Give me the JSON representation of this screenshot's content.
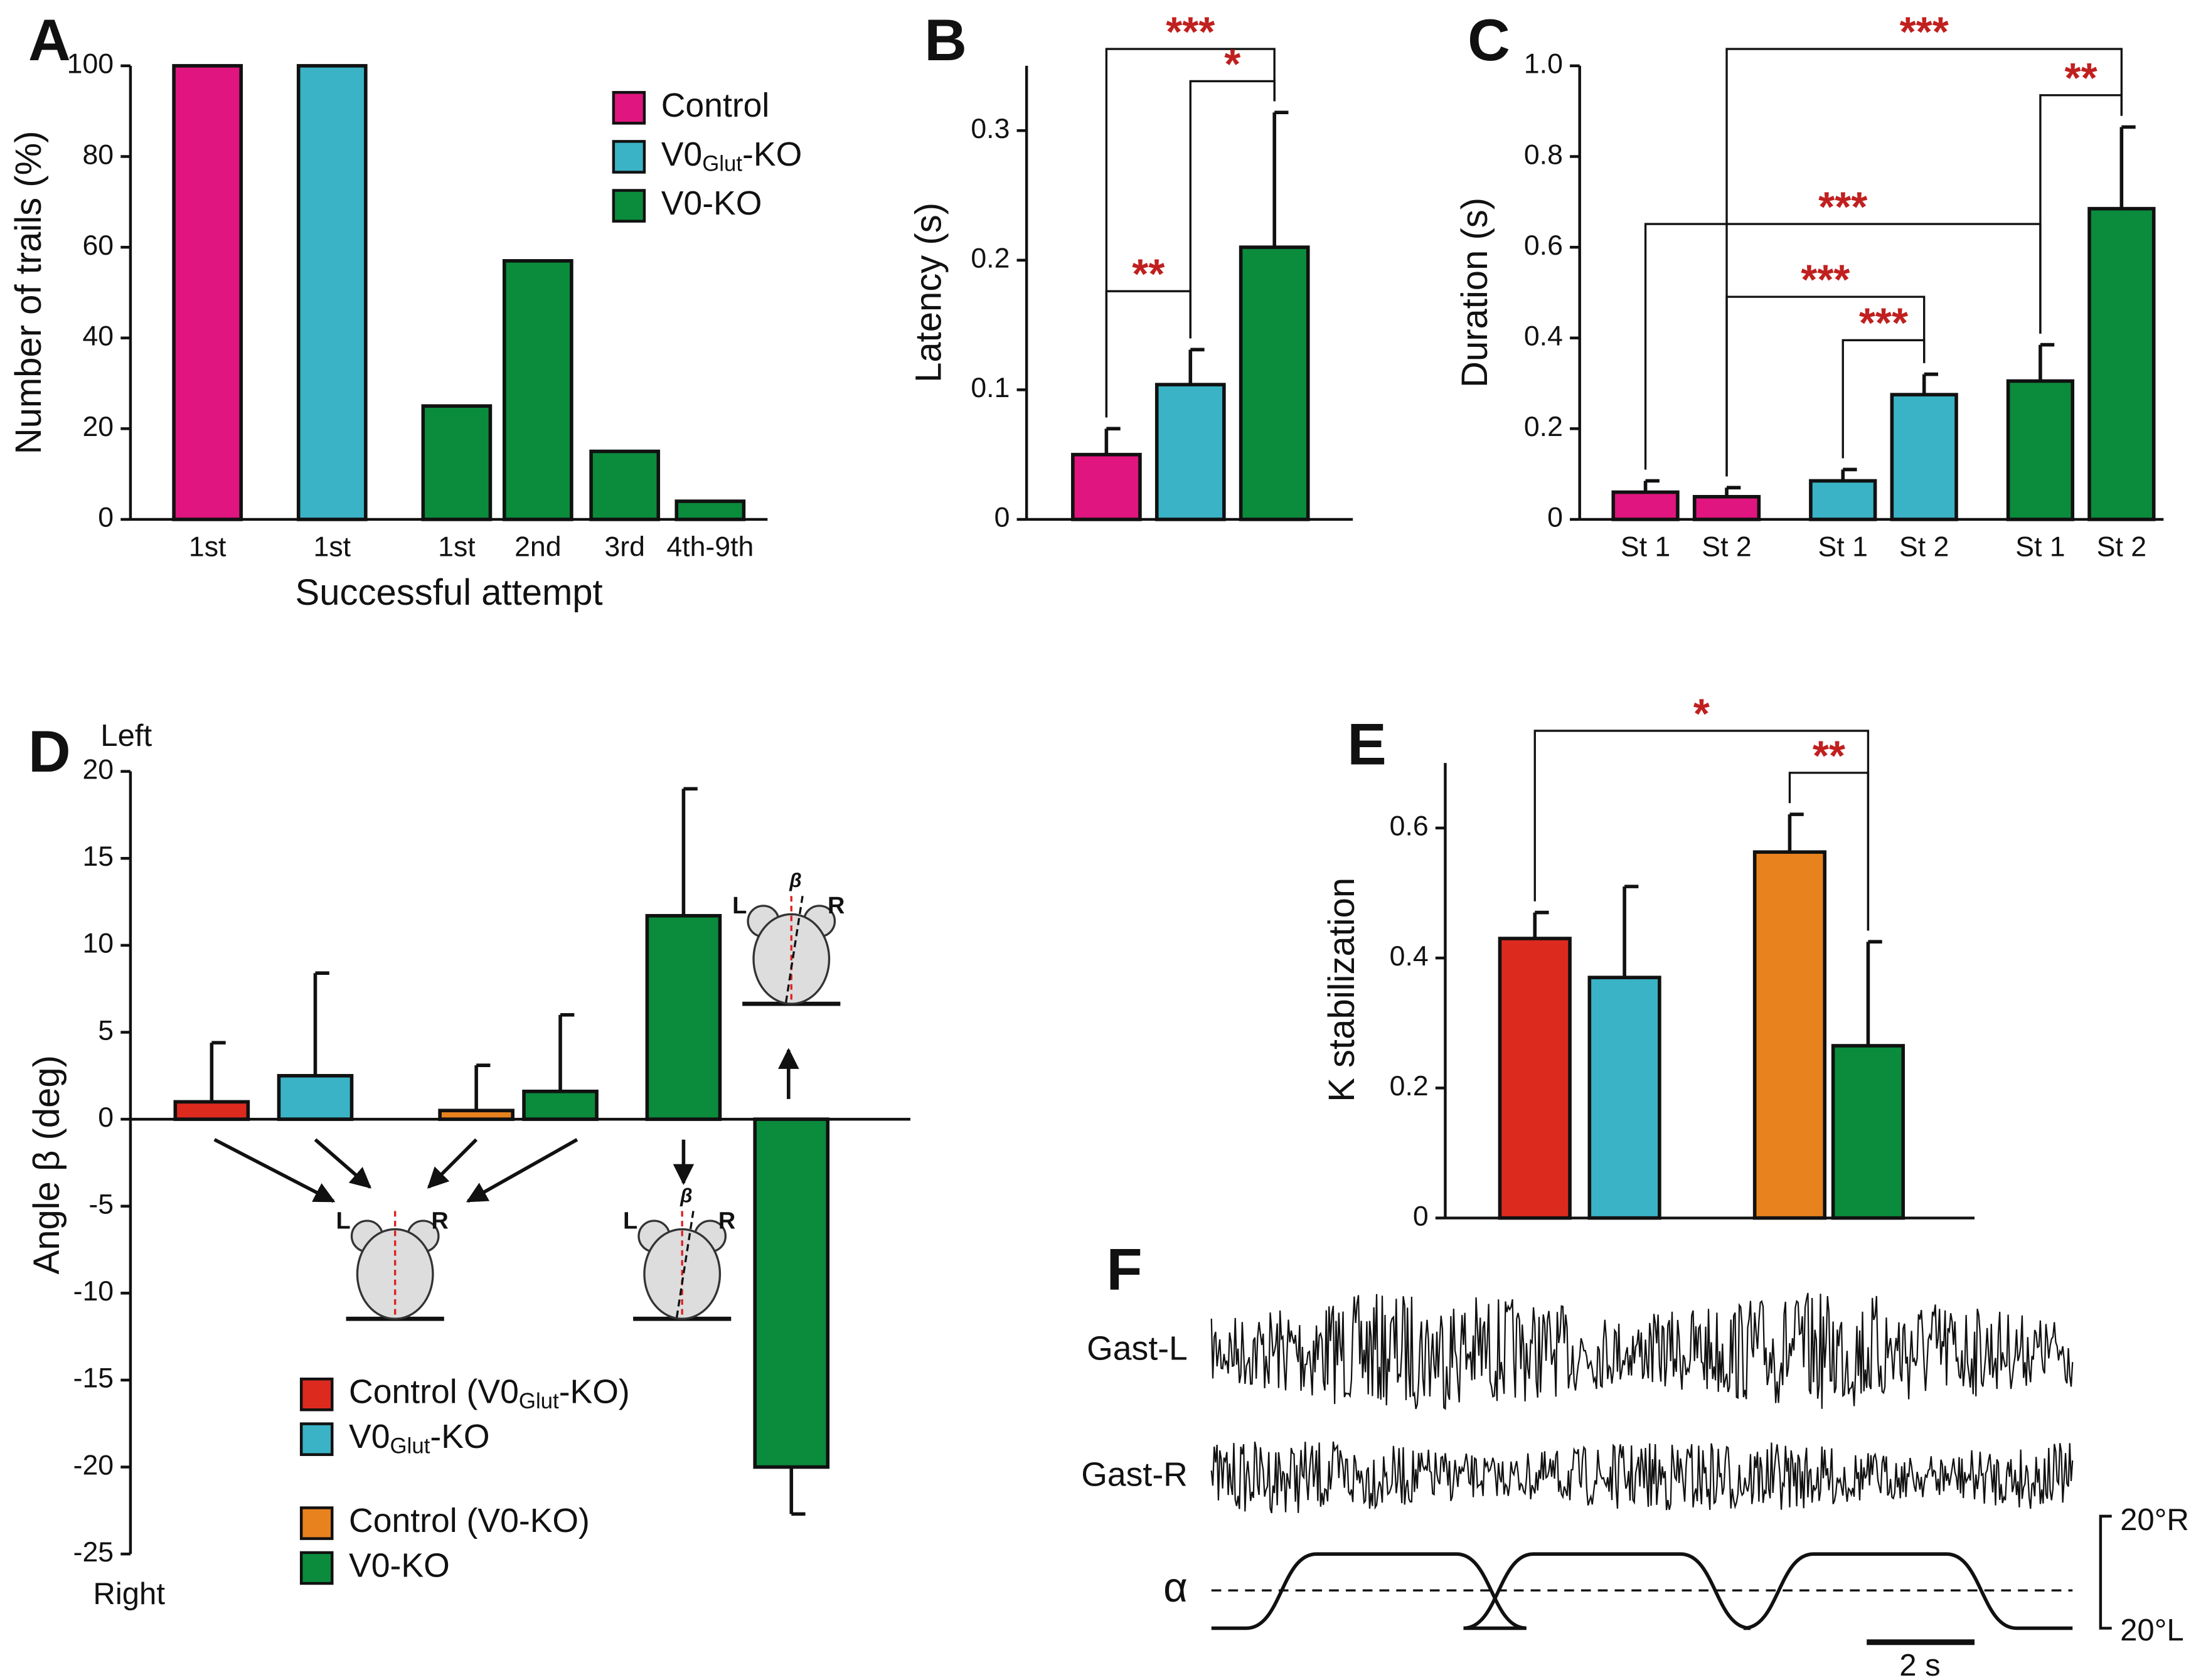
{
  "chart_data": [
    {
      "type": "bar",
      "panel": "A",
      "ylabel": "Number of trails (%)",
      "xlabel": "Successful attempt",
      "categories": [
        "1st",
        "1st",
        "1st",
        "2nd",
        "3rd",
        "4th-9th"
      ],
      "values": [
        100,
        100,
        25,
        57,
        15,
        4
      ],
      "colors": [
        "#e0157f",
        "#3ab3c6",
        "#0a8c3c",
        "#0a8c3c",
        "#0a8c3c",
        "#0a8c3c"
      ],
      "legend": [
        {
          "name": "Control",
          "color": "#e0157f"
        },
        {
          "name": [
            "V0",
            "Glut",
            "-KO"
          ],
          "color": "#3ab3c6"
        },
        {
          "name": "V0-KO",
          "color": "#0a8c3c"
        }
      ],
      "ylim": [
        0,
        100
      ],
      "yticks": [
        0,
        20,
        40,
        60,
        80,
        100
      ]
    },
    {
      "type": "bar",
      "panel": "B",
      "ylabel": "Latency (s)",
      "values": [
        0.05,
        0.104,
        0.21
      ],
      "errors": [
        0.02,
        0.027,
        0.104
      ],
      "colors": [
        "#e0157f",
        "#3ab3c6",
        "#0a8c3c"
      ],
      "significance": [
        "***",
        "*",
        "**"
      ],
      "ylim": [
        0,
        0.35
      ],
      "yticks": [
        0,
        0.1,
        0.2,
        0.3
      ]
    },
    {
      "type": "bar",
      "panel": "C",
      "ylabel": "Duration (s)",
      "categories": [
        "St 1",
        "St 2",
        "St 1",
        "St 2",
        "St 1",
        "St 2"
      ],
      "values": [
        0.06,
        0.05,
        0.085,
        0.275,
        0.305,
        0.685
      ],
      "errors": [
        0.025,
        0.02,
        0.025,
        0.045,
        0.08,
        0.18
      ],
      "colors": [
        "#e0157f",
        "#e0157f",
        "#3ab3c6",
        "#3ab3c6",
        "#0a8c3c",
        "#0a8c3c"
      ],
      "significance": [
        "***",
        "**",
        "***",
        "***",
        "***"
      ],
      "ylim": [
        0,
        1
      ],
      "yticks": [
        0,
        0.2,
        0.4,
        0.6,
        0.8,
        {
          "value": 1,
          "label": "1.0"
        }
      ]
    },
    {
      "type": "bar",
      "panel": "D",
      "ylabel": "Angle β (deg)",
      "top_label": "Left",
      "bottom_label": "Right",
      "values": [
        1,
        2.5,
        0.5,
        1.6,
        11.7,
        -20
      ],
      "errors": [
        3.4,
        5.9,
        2.6,
        4.4,
        7.3,
        2.7
      ],
      "colors": [
        "#dd2a1f",
        "#3ab3c6",
        "#e8821e",
        "#0a8c3c",
        "#0a8c3c",
        "#0a8c3c"
      ],
      "legend": [
        {
          "name": [
            "Control (V0",
            "Glut",
            "-KO)"
          ],
          "color": "#dd2a1f"
        },
        {
          "name": [
            "V0",
            "Glut",
            "-KO"
          ],
          "color": "#3ab3c6"
        },
        {
          "name": "Control (V0-KO)",
          "color": "#e8821e"
        },
        {
          "name": "V0-KO",
          "color": "#0a8c3c"
        }
      ],
      "mouse_labels": [
        "L",
        "R",
        "β"
      ],
      "ylim": [
        -25,
        20
      ],
      "yticks": [
        -25,
        -20,
        -15,
        -10,
        -5,
        0,
        5,
        10,
        15,
        20
      ]
    },
    {
      "type": "bar",
      "panel": "E",
      "ylabel": "K stabilization",
      "values": [
        0.43,
        0.37,
        0.563,
        0.265
      ],
      "errors": [
        0.04,
        0.14,
        0.058,
        0.16
      ],
      "colors": [
        "#dd2a1f",
        "#3ab3c6",
        "#e8821e",
        "#0a8c3c"
      ],
      "significance": [
        "*",
        "**"
      ],
      "ylim": [
        0,
        0.7
      ],
      "yticks": [
        0,
        0.2,
        0.4,
        0.6
      ]
    },
    {
      "type": "trace",
      "panel": "F",
      "traces": [
        "Gast-L",
        "Gast-R"
      ],
      "angle_label": "α",
      "angle_marks": [
        "20°R",
        "20°L"
      ],
      "scale_label": "2 s"
    }
  ]
}
